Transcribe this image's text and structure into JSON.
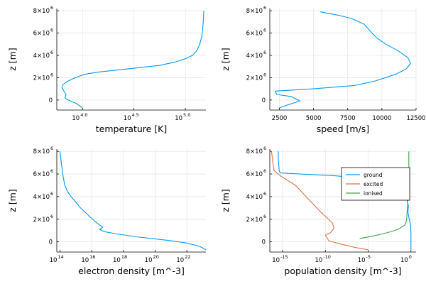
{
  "chart_data": [
    {
      "type": "line",
      "panel": "top-left",
      "xlabel": "temperature [K]",
      "ylabel": "z [m]",
      "x_scale": "log10",
      "xlim": [
        3.75,
        5.2
      ],
      "ylim": [
        -900000,
        8200000
      ],
      "grid": true,
      "x_ticks": [
        {
          "base": "10",
          "exp": "4.0",
          "v": 4.0
        },
        {
          "base": "10",
          "exp": "4.5",
          "v": 4.5
        },
        {
          "base": "10",
          "exp": "5.0",
          "v": 5.0
        }
      ],
      "y_ticks": [
        {
          "label": "0",
          "v": 0
        },
        {
          "label": "2×10",
          "exp": "6",
          "v": 2000000
        },
        {
          "label": "4×10",
          "exp": "6",
          "v": 4000000
        },
        {
          "label": "6×10",
          "exp": "6",
          "v": 6000000
        },
        {
          "label": "8×10",
          "exp": "6",
          "v": 8000000
        }
      ],
      "series": [
        {
          "color": "#009af9",
          "x": [
            4.0,
            3.94,
            3.86,
            3.83,
            3.84,
            3.82,
            3.8,
            3.81,
            3.86,
            3.93,
            4.02,
            4.15,
            4.35,
            4.55,
            4.75,
            4.9,
            5.0,
            5.07,
            5.11,
            5.14,
            5.16,
            5.17,
            5.175,
            5.18
          ],
          "y": [
            -700000,
            -300000,
            0,
            200000,
            500000,
            800000,
            1100000,
            1400000,
            1700000,
            2000000,
            2300000,
            2500000,
            2700000,
            2900000,
            3100000,
            3400000,
            3700000,
            4000000,
            4400000,
            5000000,
            5700000,
            6500000,
            7200000,
            8000000
          ]
        }
      ]
    },
    {
      "type": "line",
      "panel": "top-right",
      "xlabel": "speed [m/s]",
      "ylabel": "z [m]",
      "xlim": [
        1800,
        12500
      ],
      "ylim": [
        -900000,
        8200000
      ],
      "grid": true,
      "x_ticks": [
        {
          "label": "2500",
          "v": 2500
        },
        {
          "label": "5000",
          "v": 5000
        },
        {
          "label": "7500",
          "v": 7500
        },
        {
          "label": "10000",
          "v": 10000
        },
        {
          "label": "12500",
          "v": 12500
        }
      ],
      "y_ticks": [
        {
          "label": "0",
          "v": 0
        },
        {
          "label": "2×10",
          "exp": "6",
          "v": 2000000
        },
        {
          "label": "4×10",
          "exp": "6",
          "v": 4000000
        },
        {
          "label": "6×10",
          "exp": "6",
          "v": 6000000
        },
        {
          "label": "8×10",
          "exp": "6",
          "v": 8000000
        }
      ],
      "series": [
        {
          "color": "#009af9",
          "x": [
            2500,
            3200,
            4000,
            3400,
            2300,
            2200,
            5000,
            8000,
            9500,
            11000,
            11800,
            12100,
            11900,
            11200,
            10300,
            9600,
            9200,
            8700,
            7800,
            6800,
            5500
          ],
          "y": [
            -700000,
            -400000,
            -100000,
            300000,
            500000,
            800000,
            1000000,
            1300000,
            1700000,
            2300000,
            2800000,
            3300000,
            3800000,
            4400000,
            5000000,
            5600000,
            6100000,
            6800000,
            7300000,
            7600000,
            7900000
          ]
        }
      ]
    },
    {
      "type": "line",
      "panel": "bottom-left",
      "xlabel": "electron density [m^-3]",
      "ylabel": "z [m]",
      "x_scale": "log10",
      "xlim": [
        13.8,
        23.2
      ],
      "ylim": [
        -900000,
        8200000
      ],
      "grid": true,
      "x_ticks": [
        {
          "base": "10",
          "exp": "14",
          "v": 14
        },
        {
          "base": "10",
          "exp": "16",
          "v": 16
        },
        {
          "base": "10",
          "exp": "18",
          "v": 18
        },
        {
          "base": "10",
          "exp": "20",
          "v": 20
        },
        {
          "base": "10",
          "exp": "22",
          "v": 22
        }
      ],
      "y_ticks": [
        {
          "label": "0",
          "v": 0
        },
        {
          "label": "2×10",
          "exp": "6",
          "v": 2000000
        },
        {
          "label": "4×10",
          "exp": "6",
          "v": 4000000
        },
        {
          "label": "6×10",
          "exp": "6",
          "v": 6000000
        },
        {
          "label": "8×10",
          "exp": "6",
          "v": 8000000
        }
      ],
      "series": [
        {
          "color": "#009af9",
          "x": [
            23.2,
            22.8,
            22.0,
            21.0,
            19.8,
            18.8,
            17.6,
            16.8,
            16.5,
            16.7,
            16.3,
            15.9,
            15.6,
            15.3,
            15.0,
            14.7,
            14.5,
            14.3,
            14.2,
            14.1,
            14.0
          ],
          "y": [
            -700000,
            -400000,
            -100000,
            100000,
            300000,
            450000,
            700000,
            900000,
            1100000,
            1300000,
            1700000,
            2200000,
            2600000,
            3000000,
            3500000,
            4000000,
            4400000,
            5000000,
            5800000,
            6800000,
            8000000
          ]
        }
      ]
    },
    {
      "type": "line",
      "panel": "bottom-right",
      "xlabel": "population density [m^-3]",
      "ylabel": "z [m]",
      "x_scale": "log10",
      "xlim": [
        -16.5,
        0.6
      ],
      "ylim": [
        -900000,
        8200000
      ],
      "grid": true,
      "legend": "right",
      "x_ticks": [
        {
          "base": "10",
          "exp": "-15",
          "v": -15
        },
        {
          "base": "10",
          "exp": "-10",
          "v": -10
        },
        {
          "base": "10",
          "exp": "-5",
          "v": -5
        },
        {
          "base": "10",
          "exp": "0",
          "v": 0
        }
      ],
      "y_ticks": [
        {
          "label": "0",
          "v": 0
        },
        {
          "label": "2×10",
          "exp": "6",
          "v": 2000000
        },
        {
          "label": "4×10",
          "exp": "6",
          "v": 4000000
        },
        {
          "label": "6×10",
          "exp": "6",
          "v": 6000000
        },
        {
          "label": "8×10",
          "exp": "6",
          "v": 8000000
        }
      ],
      "series": [
        {
          "name": "ground",
          "color": "#009af9",
          "x": [
            0.0,
            0.0,
            0.0,
            -0.05,
            -0.2,
            -0.35,
            -0.3,
            -0.8,
            -4.0,
            -9.0,
            -13.0,
            -15.3,
            -15.4,
            -15.5,
            -15.5
          ],
          "y": [
            -700000,
            0,
            800000,
            1500000,
            2000000,
            2600000,
            3200000,
            4800000,
            5500000,
            5850000,
            6000000,
            6100000,
            6300000,
            7200000,
            8000000
          ]
        },
        {
          "name": "excited",
          "color": "#e26f46",
          "x": [
            -5.0,
            -6.5,
            -8.2,
            -9.6,
            -10.0,
            -9.4,
            -9.0,
            -9.2,
            -10.5,
            -11.5,
            -12.5,
            -13.5,
            -15.2,
            -16.0,
            -16.1,
            -16.2,
            -16.3
          ],
          "y": [
            -700000,
            -500000,
            -200000,
            100000,
            600000,
            800000,
            1200000,
            1700000,
            2600000,
            3400000,
            4200000,
            5000000,
            5800000,
            6300000,
            6800000,
            7400000,
            8000000
          ]
        },
        {
          "name": "ionised",
          "color": "#3da44d",
          "x": [
            -6.0,
            -4.5,
            -2.8,
            -1.5,
            -0.7,
            -0.5,
            -0.45,
            -0.35,
            -0.3,
            -0.25,
            -0.25
          ],
          "y": [
            300000,
            500000,
            800000,
            1100000,
            1500000,
            1900000,
            2700000,
            3700000,
            4800000,
            6200000,
            8000000
          ]
        }
      ]
    }
  ]
}
